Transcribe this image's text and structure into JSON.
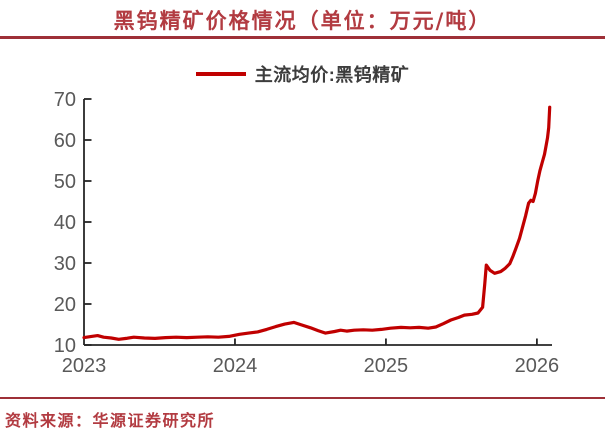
{
  "title": "黑钨精矿价格情况（单位：万元/吨）",
  "legend": {
    "label": "主流均价:黑钨精矿"
  },
  "source": "资料来源：华源证券研究所",
  "colors": {
    "title_red": "#B23B41",
    "rule_red": "#9E3038",
    "series_red": "#C00000",
    "axis_line": "#262626",
    "axis_text": "#595959",
    "legend_text": "#3D3D3D"
  },
  "chart_data": {
    "type": "line",
    "title": "黑钨精矿价格情况（单位：万元/吨）",
    "unit": "万元/吨",
    "xlabel": "",
    "ylabel": "",
    "xlim": [
      2023,
      2026.1
    ],
    "ylim": [
      10,
      70
    ],
    "xticks": [
      2023,
      2024,
      2025,
      2026
    ],
    "yticks": [
      10,
      20,
      30,
      40,
      50,
      60,
      70
    ],
    "grid": false,
    "legend_position": "top-center",
    "series": [
      {
        "name": "主流均价:黑钨精矿",
        "color": "#C00000",
        "points": [
          [
            2023.0,
            11.8
          ],
          [
            2023.05,
            12.1
          ],
          [
            2023.09,
            12.3
          ],
          [
            2023.13,
            11.9
          ],
          [
            2023.18,
            11.7
          ],
          [
            2023.23,
            11.4
          ],
          [
            2023.28,
            11.6
          ],
          [
            2023.33,
            11.9
          ],
          [
            2023.4,
            11.7
          ],
          [
            2023.47,
            11.6
          ],
          [
            2023.54,
            11.8
          ],
          [
            2023.61,
            11.9
          ],
          [
            2023.68,
            11.8
          ],
          [
            2023.75,
            11.9
          ],
          [
            2023.82,
            12.0
          ],
          [
            2023.89,
            11.9
          ],
          [
            2023.96,
            12.1
          ],
          [
            2024.03,
            12.6
          ],
          [
            2024.09,
            12.9
          ],
          [
            2024.15,
            13.2
          ],
          [
            2024.21,
            13.8
          ],
          [
            2024.27,
            14.5
          ],
          [
            2024.33,
            15.1
          ],
          [
            2024.39,
            15.5
          ],
          [
            2024.44,
            14.9
          ],
          [
            2024.5,
            14.2
          ],
          [
            2024.55,
            13.5
          ],
          [
            2024.6,
            12.9
          ],
          [
            2024.66,
            13.3
          ],
          [
            2024.7,
            13.6
          ],
          [
            2024.74,
            13.4
          ],
          [
            2024.79,
            13.6
          ],
          [
            2024.85,
            13.7
          ],
          [
            2024.91,
            13.6
          ],
          [
            2024.97,
            13.8
          ],
          [
            2025.03,
            14.1
          ],
          [
            2025.1,
            14.3
          ],
          [
            2025.16,
            14.2
          ],
          [
            2025.22,
            14.3
          ],
          [
            2025.28,
            14.1
          ],
          [
            2025.33,
            14.4
          ],
          [
            2025.38,
            15.2
          ],
          [
            2025.43,
            16.1
          ],
          [
            2025.48,
            16.7
          ],
          [
            2025.52,
            17.3
          ],
          [
            2025.57,
            17.5
          ],
          [
            2025.61,
            17.8
          ],
          [
            2025.64,
            19.2
          ],
          [
            2025.655,
            25.0
          ],
          [
            2025.665,
            29.5
          ],
          [
            2025.69,
            28.2
          ],
          [
            2025.72,
            27.5
          ],
          [
            2025.76,
            27.9
          ],
          [
            2025.79,
            28.7
          ],
          [
            2025.82,
            29.8
          ],
          [
            2025.84,
            31.5
          ],
          [
            2025.86,
            33.5
          ],
          [
            2025.885,
            36.0
          ],
          [
            2025.905,
            38.8
          ],
          [
            2025.925,
            41.5
          ],
          [
            2025.945,
            44.6
          ],
          [
            2025.96,
            45.3
          ],
          [
            2025.975,
            45.0
          ],
          [
            2025.99,
            47.0
          ],
          [
            2026.005,
            50.0
          ],
          [
            2026.02,
            52.5
          ],
          [
            2026.035,
            54.5
          ],
          [
            2026.05,
            56.5
          ],
          [
            2026.06,
            58.5
          ],
          [
            2026.07,
            60.5
          ],
          [
            2026.078,
            63.0
          ],
          [
            2026.085,
            68.0
          ]
        ]
      }
    ]
  }
}
